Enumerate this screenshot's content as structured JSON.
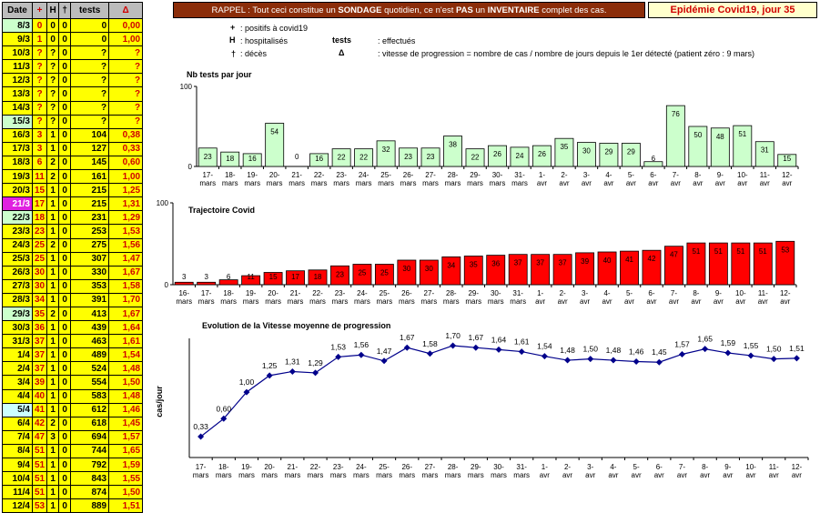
{
  "table": {
    "headers": {
      "date": "Date",
      "cases": "+",
      "hosp": "H",
      "deaths": "†",
      "tests": "tests",
      "speed": "Δ"
    },
    "rows": [
      {
        "date": "8/3",
        "cases": "0",
        "hosp": "0",
        "deaths": "0",
        "tests": "0",
        "speed": "0,00",
        "hl": "g"
      },
      {
        "date": "9/3",
        "cases": "1",
        "hosp": "0",
        "deaths": "0",
        "tests": "0",
        "speed": "1,00",
        "hl": ""
      },
      {
        "date": "10/3",
        "cases": "?",
        "hosp": "?",
        "deaths": "0",
        "tests": "?",
        "speed": "?",
        "hl": ""
      },
      {
        "date": "11/3",
        "cases": "?",
        "hosp": "?",
        "deaths": "0",
        "tests": "?",
        "speed": "?",
        "hl": ""
      },
      {
        "date": "12/3",
        "cases": "?",
        "hosp": "?",
        "deaths": "0",
        "tests": "?",
        "speed": "?",
        "hl": ""
      },
      {
        "date": "13/3",
        "cases": "?",
        "hosp": "?",
        "deaths": "0",
        "tests": "?",
        "speed": "?",
        "hl": ""
      },
      {
        "date": "14/3",
        "cases": "?",
        "hosp": "?",
        "deaths": "0",
        "tests": "?",
        "speed": "?",
        "hl": ""
      },
      {
        "date": "15/3",
        "cases": "?",
        "hosp": "?",
        "deaths": "0",
        "tests": "?",
        "speed": "?",
        "hl": "g"
      },
      {
        "date": "16/3",
        "cases": "3",
        "hosp": "1",
        "deaths": "0",
        "tests": "104",
        "speed": "0,38",
        "hl": ""
      },
      {
        "date": "17/3",
        "cases": "3",
        "hosp": "1",
        "deaths": "0",
        "tests": "127",
        "speed": "0,33",
        "hl": ""
      },
      {
        "date": "18/3",
        "cases": "6",
        "hosp": "2",
        "deaths": "0",
        "tests": "145",
        "speed": "0,60",
        "hl": ""
      },
      {
        "date": "19/3",
        "cases": "11",
        "hosp": "2",
        "deaths": "0",
        "tests": "161",
        "speed": "1,00",
        "hl": ""
      },
      {
        "date": "20/3",
        "cases": "15",
        "hosp": "1",
        "deaths": "0",
        "tests": "215",
        "speed": "1,25",
        "hl": ""
      },
      {
        "date": "21/3",
        "cases": "17",
        "hosp": "1",
        "deaths": "0",
        "tests": "215",
        "speed": "1,31",
        "hl": "p"
      },
      {
        "date": "22/3",
        "cases": "18",
        "hosp": "1",
        "deaths": "0",
        "tests": "231",
        "speed": "1,29",
        "hl": "g"
      },
      {
        "date": "23/3",
        "cases": "23",
        "hosp": "1",
        "deaths": "0",
        "tests": "253",
        "speed": "1,53",
        "hl": ""
      },
      {
        "date": "24/3",
        "cases": "25",
        "hosp": "2",
        "deaths": "0",
        "tests": "275",
        "speed": "1,56",
        "hl": ""
      },
      {
        "date": "25/3",
        "cases": "25",
        "hosp": "1",
        "deaths": "0",
        "tests": "307",
        "speed": "1,47",
        "hl": ""
      },
      {
        "date": "26/3",
        "cases": "30",
        "hosp": "1",
        "deaths": "0",
        "tests": "330",
        "speed": "1,67",
        "hl": ""
      },
      {
        "date": "27/3",
        "cases": "30",
        "hosp": "1",
        "deaths": "0",
        "tests": "353",
        "speed": "1,58",
        "hl": ""
      },
      {
        "date": "28/3",
        "cases": "34",
        "hosp": "1",
        "deaths": "0",
        "tests": "391",
        "speed": "1,70",
        "hl": ""
      },
      {
        "date": "29/3",
        "cases": "35",
        "hosp": "2",
        "deaths": "0",
        "tests": "413",
        "speed": "1,67",
        "hl": "g"
      },
      {
        "date": "30/3",
        "cases": "36",
        "hosp": "1",
        "deaths": "0",
        "tests": "439",
        "speed": "1,64",
        "hl": ""
      },
      {
        "date": "31/3",
        "cases": "37",
        "hosp": "1",
        "deaths": "0",
        "tests": "463",
        "speed": "1,61",
        "hl": ""
      },
      {
        "date": "1/4",
        "cases": "37",
        "hosp": "1",
        "deaths": "0",
        "tests": "489",
        "speed": "1,54",
        "hl": ""
      },
      {
        "date": "2/4",
        "cases": "37",
        "hosp": "1",
        "deaths": "0",
        "tests": "524",
        "speed": "1,48",
        "hl": ""
      },
      {
        "date": "3/4",
        "cases": "39",
        "hosp": "1",
        "deaths": "0",
        "tests": "554",
        "speed": "1,50",
        "hl": ""
      },
      {
        "date": "4/4",
        "cases": "40",
        "hosp": "1",
        "deaths": "0",
        "tests": "583",
        "speed": "1,48",
        "hl": ""
      },
      {
        "date": "5/4",
        "cases": "41",
        "hosp": "1",
        "deaths": "0",
        "tests": "612",
        "speed": "1,46",
        "hl": "b"
      },
      {
        "date": "6/4",
        "cases": "42",
        "hosp": "2",
        "deaths": "0",
        "tests": "618",
        "speed": "1,45",
        "hl": ""
      },
      {
        "date": "7/4",
        "cases": "47",
        "hosp": "3",
        "deaths": "0",
        "tests": "694",
        "speed": "1,57",
        "hl": ""
      },
      {
        "date": "8/4",
        "cases": "51",
        "hosp": "1",
        "deaths": "0",
        "tests": "744",
        "speed": "1,65",
        "hl": ""
      },
      {
        "date": "9/4",
        "cases": "51",
        "hosp": "1",
        "deaths": "0",
        "tests": "792",
        "speed": "1,59",
        "hl": ""
      },
      {
        "date": "10/4",
        "cases": "51",
        "hosp": "1",
        "deaths": "0",
        "tests": "843",
        "speed": "1,55",
        "hl": ""
      },
      {
        "date": "11/4",
        "cases": "51",
        "hosp": "1",
        "deaths": "0",
        "tests": "874",
        "speed": "1,50",
        "hl": ""
      },
      {
        "date": "12/4",
        "cases": "53",
        "hosp": "1",
        "deaths": "0",
        "tests": "889",
        "speed": "1,51",
        "hl": ""
      }
    ]
  },
  "banner": {
    "part1": "RAPPEL : Tout ceci constitue un ",
    "bold1": "SONDAGE",
    "part2": " quotidien, ce n'est ",
    "bold2": "PAS",
    "part3": " un ",
    "bold3": "INVENTAIRE",
    "part4": " complet des cas."
  },
  "epidemic_label": "Epidémie Covid19, jour 35",
  "legend": [
    {
      "sym": "+",
      "desc": ": positifs à covid19"
    },
    {
      "sym": "H",
      "desc": ": hospitalisés"
    },
    {
      "sym": "tests",
      "desc": ": effectués"
    },
    {
      "sym": "†",
      "desc": ": décès"
    },
    {
      "sym": "Δ",
      "desc": ": vitesse de progression = nombre de cas / nombre de jours depuis le 1er détecté (patient zéro : 9 mars)"
    }
  ],
  "chart_data": [
    {
      "type": "bar",
      "title": "Nb tests par jour",
      "ylim": [
        0,
        100
      ],
      "yticks": [
        "0",
        "100"
      ],
      "bar_color": "#ccffcc",
      "categories": [
        "17-mars",
        "18-mars",
        "19-mars",
        "20-mars",
        "21-mars",
        "22-mars",
        "23-mars",
        "24-mars",
        "25-mars",
        "26-mars",
        "27-mars",
        "28-mars",
        "29-mars",
        "30-mars",
        "31-mars",
        "1-avr",
        "2-avr",
        "3-avr",
        "4-avr",
        "5-avr",
        "6-avr",
        "7-avr",
        "8-avr",
        "9-avr",
        "10-avr",
        "11-avr",
        "12-avr"
      ],
      "values": [
        23,
        18,
        16,
        54,
        0,
        16,
        22,
        22,
        32,
        23,
        23,
        38,
        22,
        26,
        24,
        26,
        35,
        30,
        29,
        29,
        6,
        76,
        50,
        48,
        51,
        31,
        15
      ]
    },
    {
      "type": "bar",
      "title": "Trajectoire Covid",
      "ylim": [
        0,
        100
      ],
      "yticks": [
        "0",
        "100"
      ],
      "bar_color": "#ff0000",
      "categories": [
        "16-mars",
        "17-mars",
        "18-mars",
        "19-mars",
        "20-mars",
        "21-mars",
        "22-mars",
        "23-mars",
        "24-mars",
        "25-mars",
        "26-mars",
        "27-mars",
        "28-mars",
        "29-mars",
        "30-mars",
        "31-mars",
        "1-avr",
        "2-avr",
        "3-avr",
        "4-avr",
        "5-avr",
        "6-avr",
        "7-avr",
        "8-avr",
        "9-avr",
        "10-avr",
        "11-avr",
        "12-avr"
      ],
      "values": [
        3,
        3,
        6,
        11,
        15,
        17,
        18,
        23,
        25,
        25,
        30,
        30,
        34,
        35,
        36,
        37,
        37,
        37,
        39,
        40,
        41,
        42,
        47,
        51,
        51,
        51,
        51,
        53
      ]
    },
    {
      "type": "line",
      "title": "Evolution de la Vitesse moyenne de progression",
      "ylabel": "cas/jour",
      "line_color": "#00008b",
      "categories": [
        "17-mars",
        "18-mars",
        "19-mars",
        "20-mars",
        "21-mars",
        "22-mars",
        "23-mars",
        "24-mars",
        "25-mars",
        "26-mars",
        "27-mars",
        "28-mars",
        "29-mars",
        "30-mars",
        "31-mars",
        "1-avr",
        "2-avr",
        "3-avr",
        "4-avr",
        "5-avr",
        "6-avr",
        "7-avr",
        "8-avr",
        "9-avr",
        "10-avr",
        "11-avr",
        "12-avr"
      ],
      "values": [
        0.33,
        0.6,
        1.0,
        1.25,
        1.31,
        1.29,
        1.53,
        1.56,
        1.47,
        1.67,
        1.58,
        1.7,
        1.67,
        1.64,
        1.61,
        1.54,
        1.48,
        1.5,
        1.48,
        1.46,
        1.45,
        1.57,
        1.65,
        1.59,
        1.55,
        1.5,
        1.51
      ],
      "labels": [
        "0,33",
        "0,60",
        "1,00",
        "1,25",
        "1,31",
        "1,29",
        "1,53",
        "1,56",
        "1,47",
        "1,67",
        "1,58",
        "1,70",
        "1,67",
        "1,64",
        "1,61",
        "1,54",
        "1,48",
        "1,50",
        "1,48",
        "1,46",
        "1,45",
        "1,57",
        "1,65",
        "1,59",
        "1,55",
        "1,50",
        "1,51"
      ]
    }
  ]
}
